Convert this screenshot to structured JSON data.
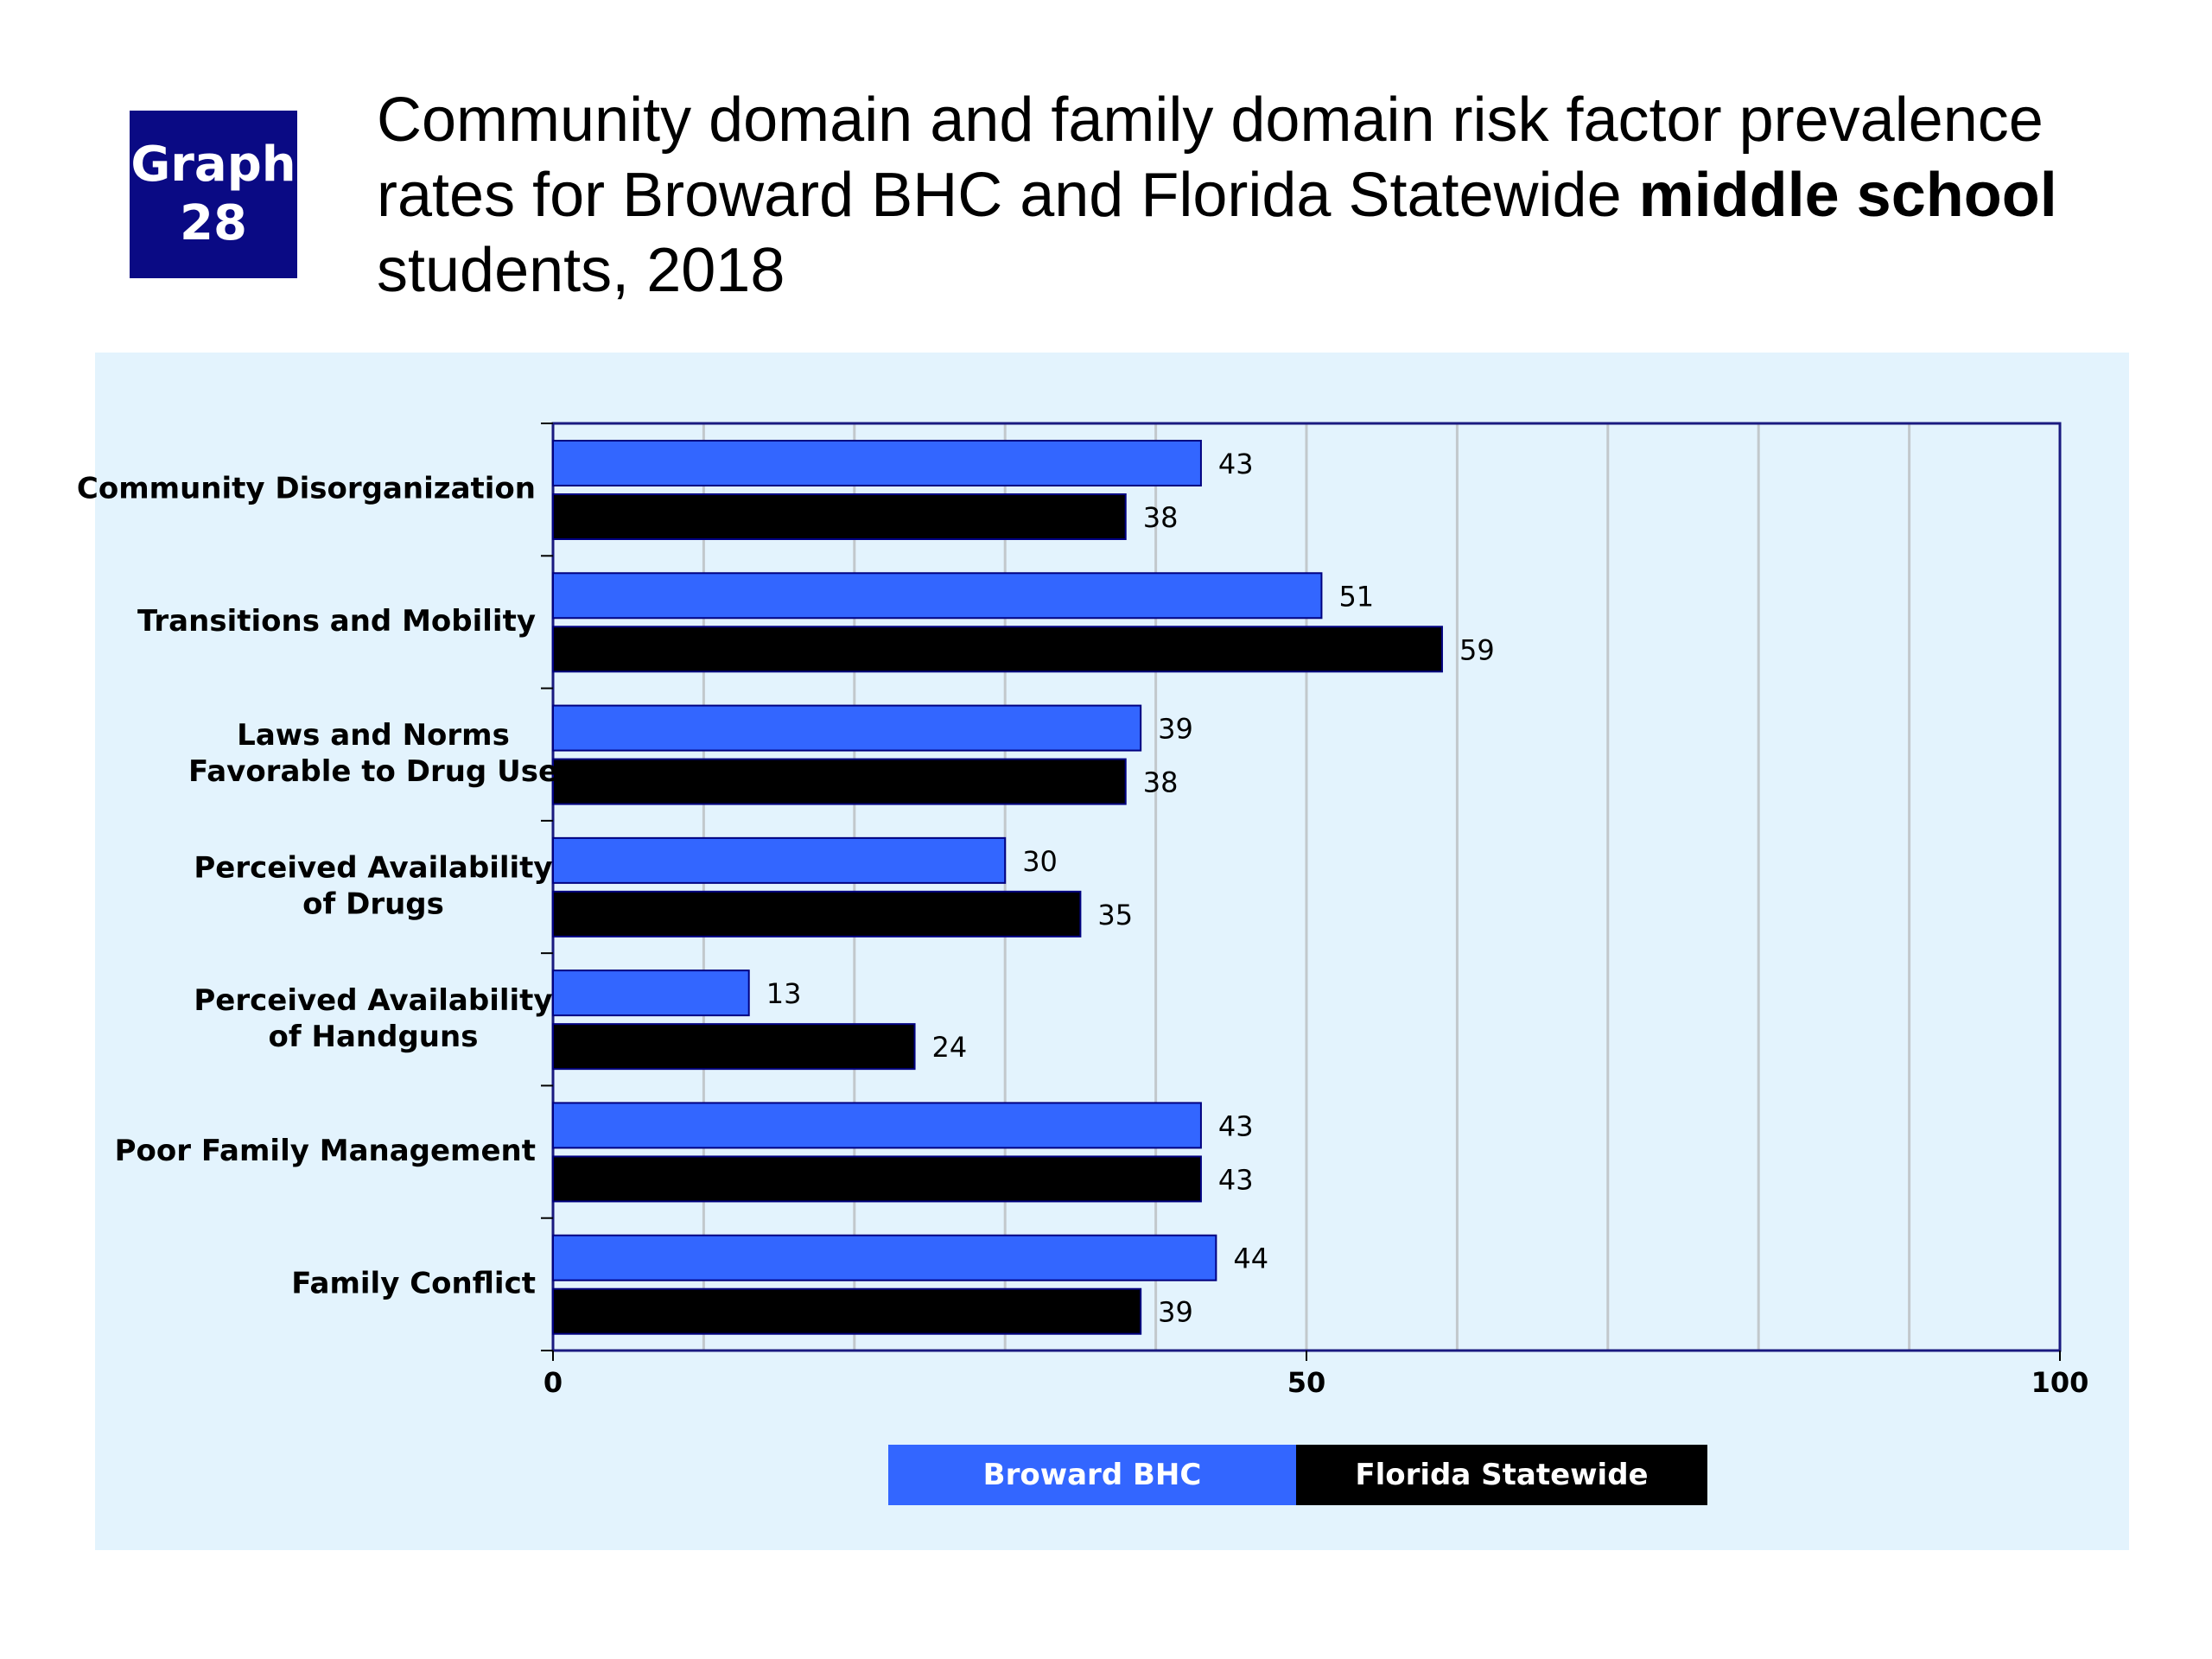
{
  "badge": {
    "line1": "Graph",
    "line2": "28"
  },
  "title": {
    "part1": "Community domain and family domain risk factor prevalence rates for Broward BHC and Florida Statewide ",
    "bold": "middle school",
    "part2": " students, 2018"
  },
  "chart_data": {
    "type": "bar",
    "orientation": "horizontal",
    "categories": [
      [
        "Community Disorganization"
      ],
      [
        "Transitions and Mobility"
      ],
      [
        "Laws and Norms",
        "Favorable to Drug Use"
      ],
      [
        "Perceived Availability",
        "of Drugs"
      ],
      [
        "Perceived Availability",
        "of Handguns"
      ],
      [
        "Poor Family Management"
      ],
      [
        "Family Conflict"
      ]
    ],
    "series": [
      {
        "name": "Broward BHC",
        "color": "#3366ff",
        "values": [
          43,
          51,
          39,
          30,
          13,
          43,
          44
        ]
      },
      {
        "name": "Florida Statewide",
        "color": "#000000",
        "values": [
          38,
          59,
          38,
          35,
          24,
          43,
          39
        ]
      }
    ],
    "xlim": [
      0,
      100
    ],
    "x_ticks": [
      0,
      50,
      100
    ],
    "gridlines_every": 10,
    "grid": true,
    "legend": "bottom-center",
    "data_labels": true
  }
}
